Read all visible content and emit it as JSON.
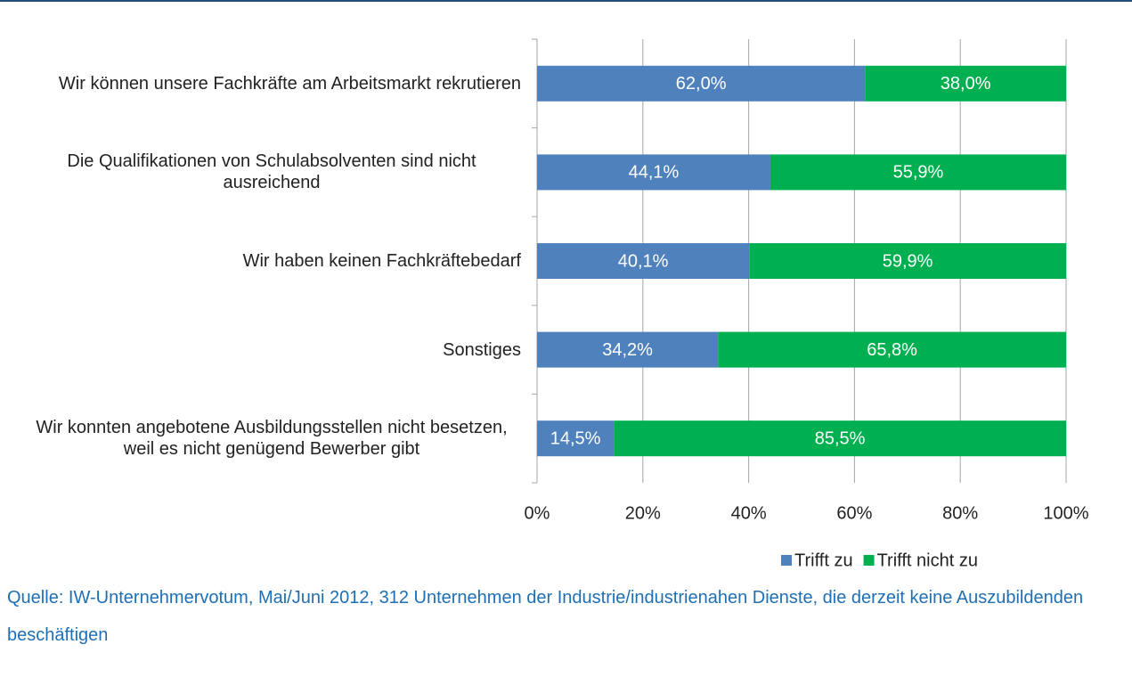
{
  "chart_data": {
    "type": "stacked_barh",
    "categories": [
      "Wir können unsere Fachkräfte am Arbeitsmarkt rekrutieren",
      "Die Qualifikationen von Schulabsolventen sind nicht ausreichend",
      "Wir haben keinen Fachkräftebedarf",
      "Sonstiges",
      "Wir konnten angebotene Ausbildungsstellen nicht besetzen, weil es nicht genügend Bewerber gibt"
    ],
    "series": [
      {
        "name": "Trifft zu",
        "color": "#4f81bd",
        "values": [
          62.0,
          44.1,
          40.1,
          34.2,
          14.5
        ],
        "value_labels": [
          "62,0%",
          "44,1%",
          "40,1%",
          "34,2%",
          "14,5%"
        ]
      },
      {
        "name": "Trifft nicht zu",
        "color": "#00b050",
        "values": [
          38.0,
          55.9,
          59.9,
          65.8,
          85.5
        ],
        "value_labels": [
          "38,0%",
          "55,9%",
          "59,9%",
          "65,8%",
          "85,5%"
        ]
      }
    ],
    "xlim": [
      0,
      100
    ],
    "xticks": [
      {
        "value": 0,
        "label": "0%"
      },
      {
        "value": 20,
        "label": "20%"
      },
      {
        "value": 40,
        "label": "40%"
      },
      {
        "value": 60,
        "label": "60%"
      },
      {
        "value": 80,
        "label": "80%"
      },
      {
        "value": 100,
        "label": "100%"
      }
    ],
    "grid": true,
    "legend": "bottom-right",
    "source": "Quelle: IW-Unternehmervotum, Mai/Juni 2012, 312 Unternehmen der Industrie/industrienahen Dienste, die derzeit keine Auszubildenden beschäftigen"
  }
}
